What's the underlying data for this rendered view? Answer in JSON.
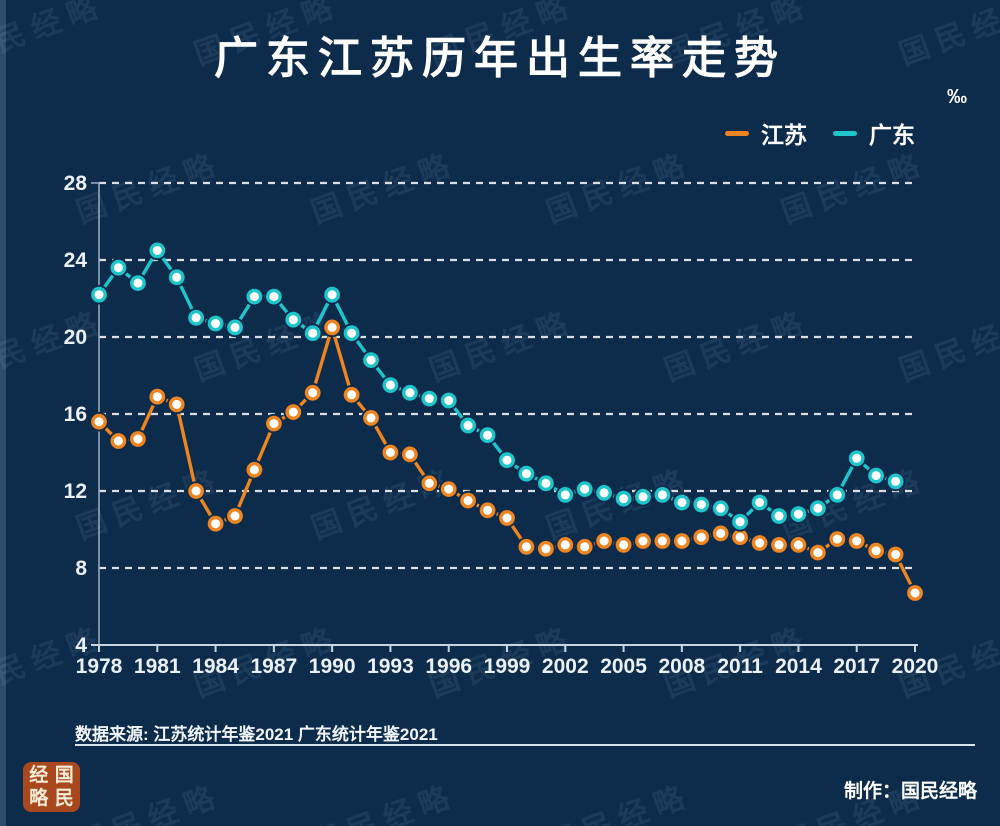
{
  "page": {
    "title": "广东江苏历年出生率走势",
    "unit": "‰",
    "source_note": "数据来源: 江苏统计年鉴2021 广东统计年鉴2021",
    "credit": "制作：国民经略",
    "watermark_text": "国民经略",
    "logo_chars": [
      "经",
      "国",
      "略",
      "民"
    ]
  },
  "colors": {
    "background": "#0d2b4a",
    "jiangsu": "#EE8520",
    "guangdong": "#1EC5CB",
    "text": "#ffffff",
    "gridline": "#ffffff",
    "y_axis": "#93a8bc",
    "x_axis": "#c9d6e2",
    "logo_bg": "#A8481C",
    "logo_text": "#F7ECD8"
  },
  "legend": [
    {
      "label": "江苏",
      "color_key": "jiangsu"
    },
    {
      "label": "广东",
      "color_key": "guangdong"
    }
  ],
  "chart_data": {
    "type": "line",
    "title": "广东江苏历年出生率走势",
    "xlabel": "",
    "ylabel": "‰",
    "ylim": [
      4,
      28
    ],
    "yticks": [
      4,
      8,
      12,
      16,
      20,
      24,
      28
    ],
    "grid": "horizontal-dashed",
    "legend_position": "top-right",
    "x": [
      1978,
      1979,
      1980,
      1981,
      1982,
      1983,
      1984,
      1985,
      1986,
      1987,
      1988,
      1989,
      1990,
      1991,
      1992,
      1993,
      1994,
      1995,
      1996,
      1997,
      1998,
      1999,
      2000,
      2001,
      2002,
      2003,
      2004,
      2005,
      2006,
      2007,
      2008,
      2009,
      2010,
      2011,
      2012,
      2013,
      2014,
      2015,
      2016,
      2017,
      2018,
      2019,
      2020
    ],
    "x_tick_labels": [
      "1978",
      "1981",
      "1984",
      "1987",
      "1990",
      "1993",
      "1996",
      "1999",
      "2002",
      "2005",
      "2008",
      "2011",
      "2014",
      "2017",
      "2020"
    ],
    "series": [
      {
        "name": "江苏",
        "color_key": "jiangsu",
        "values": [
          15.6,
          14.6,
          14.7,
          16.9,
          16.5,
          12.0,
          10.3,
          10.7,
          13.1,
          15.5,
          16.1,
          17.1,
          20.5,
          17.0,
          15.8,
          14.0,
          13.9,
          12.4,
          12.1,
          11.5,
          11.0,
          10.6,
          9.1,
          9.0,
          9.2,
          9.1,
          9.4,
          9.2,
          9.4,
          9.4,
          9.4,
          9.6,
          9.8,
          9.6,
          9.3,
          9.2,
          9.2,
          8.8,
          9.5,
          9.4,
          8.9,
          8.7,
          6.7
        ]
      },
      {
        "name": "广东",
        "color_key": "guangdong",
        "values": [
          22.2,
          23.6,
          22.8,
          24.5,
          23.1,
          21.0,
          20.7,
          20.5,
          22.1,
          22.1,
          20.9,
          20.2,
          22.2,
          20.2,
          18.8,
          17.5,
          17.1,
          16.8,
          16.7,
          15.4,
          14.9,
          13.6,
          12.9,
          12.4,
          11.8,
          12.1,
          11.9,
          11.6,
          11.7,
          11.8,
          11.4,
          11.3,
          11.1,
          10.4,
          11.4,
          10.7,
          10.8,
          11.1,
          11.8,
          13.7,
          12.8,
          12.5,
          null
        ]
      }
    ]
  }
}
